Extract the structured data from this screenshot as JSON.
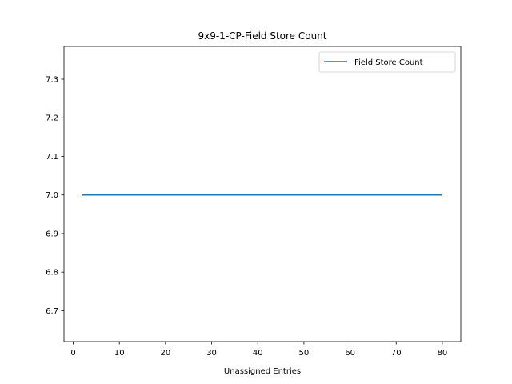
{
  "chart_data": {
    "type": "line",
    "title": "9x9-1-CP-Field Store Count",
    "xlabel": "Unassigned Entries",
    "ylabel": "",
    "xlim": [
      -2,
      84
    ],
    "ylim": [
      6.62,
      7.385
    ],
    "xticks": [
      0,
      10,
      20,
      30,
      40,
      50,
      60,
      70,
      80
    ],
    "yticks": [
      6.7,
      6.8,
      6.9,
      7.0,
      7.1,
      7.2,
      7.3
    ],
    "xtick_labels": [
      "0",
      "10",
      "20",
      "30",
      "40",
      "50",
      "60",
      "70",
      "80"
    ],
    "ytick_labels": [
      "6.7",
      "6.8",
      "6.9",
      "7.0",
      "7.1",
      "7.2",
      "7.3"
    ],
    "grid": false,
    "legend_position": "upper right",
    "series": [
      {
        "name": "Field Store Count",
        "color": "#1f77b4",
        "x": [
          2,
          80
        ],
        "y": [
          7.0,
          7.0
        ]
      }
    ]
  }
}
